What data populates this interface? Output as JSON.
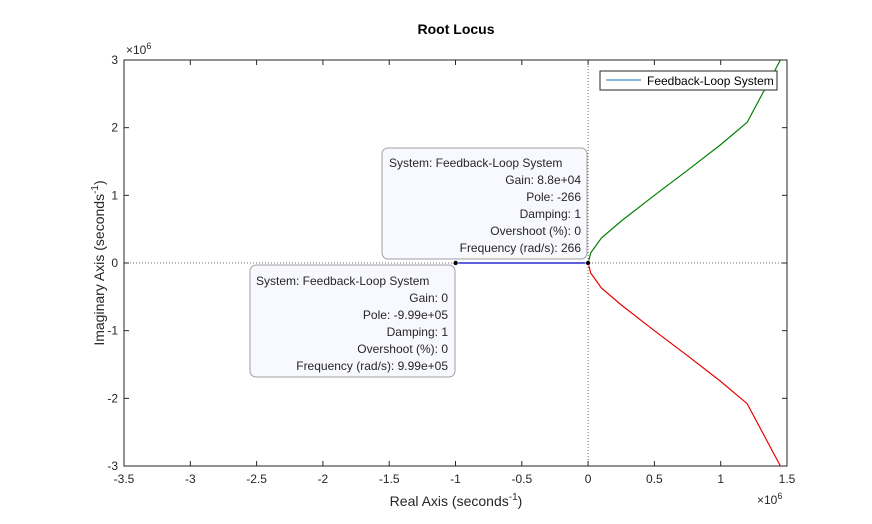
{
  "chart_data": {
    "type": "line",
    "title": "Root Locus",
    "xlabel": {
      "main": "Real Axis (seconds",
      "sup": "-1",
      "close": ")"
    },
    "ylabel": {
      "main": "Imaginary Axis (seconds",
      "sup": "-1",
      "close": ")"
    },
    "xlim": [
      -3.5,
      1.5
    ],
    "ylim": [
      -3,
      3
    ],
    "x_exponent": {
      "base": "×10",
      "power": "6"
    },
    "y_exponent": {
      "base": "×10",
      "power": "6"
    },
    "xticks": [
      "-3.5",
      "-3",
      "-2.5",
      "-2",
      "-1.5",
      "-1",
      "-0.5",
      "0",
      "0.5",
      "1",
      "1.5"
    ],
    "yticks": [
      "-3",
      "-2",
      "-1",
      "0",
      "1",
      "2",
      "3"
    ],
    "legend": {
      "location": "top-right",
      "label": "Feedback-Loop System"
    },
    "series": [
      {
        "color": "#0000cc",
        "x": [
          -0.999,
          -0.000266
        ],
        "y": [
          0,
          0
        ]
      },
      {
        "color": "#008000",
        "x": [
          0,
          0.02,
          0.1,
          0.25,
          0.5,
          0.75,
          1.0,
          1.2,
          1.45
        ],
        "y": [
          0,
          0.15,
          0.37,
          0.62,
          1.0,
          1.37,
          1.75,
          2.08,
          3.0
        ]
      },
      {
        "color": "#e60000",
        "x": [
          0,
          0.02,
          0.1,
          0.25,
          0.5,
          0.75,
          1.0,
          1.2,
          1.45
        ],
        "y": [
          0,
          -0.15,
          -0.37,
          -0.62,
          -1.0,
          -1.37,
          -1.75,
          -2.08,
          -3.0
        ]
      }
    ],
    "datatips": [
      {
        "point": [
          -0.000266,
          0
        ],
        "lines": [
          "System: Feedback-Loop System",
          "Gain: 8.8e+04",
          "Pole: -266",
          "Damping: 1",
          "Overshoot (%): 0",
          "Frequency (rad/s): 266"
        ]
      },
      {
        "point": [
          -0.999,
          0
        ],
        "lines": [
          "System: Feedback-Loop System",
          "Gain: 0",
          "Pole: -9.99e+05",
          "Damping: 1",
          "Overshoot (%): 0",
          "Frequency (rad/s): 9.99e+05"
        ]
      }
    ]
  }
}
